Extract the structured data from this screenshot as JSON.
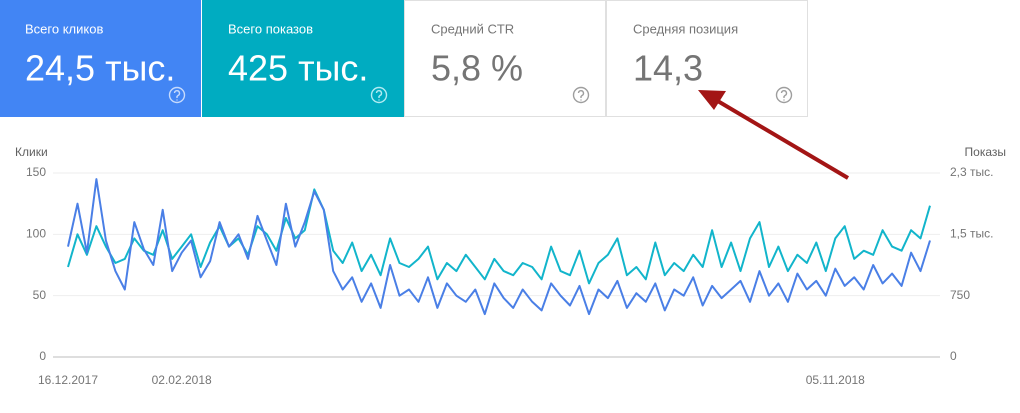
{
  "cards": [
    {
      "label": "Всего кликов",
      "value": "24,5 тыс."
    },
    {
      "label": "Всего показов",
      "value": "425 тыс."
    },
    {
      "label": "Средний CTR",
      "value": "5,8 %"
    },
    {
      "label": "Средняя позиция",
      "value": "14,3"
    }
  ],
  "chart_data": {
    "type": "line",
    "categories": [
      "16.12.2017",
      null,
      null,
      null,
      null,
      null,
      null,
      null,
      null,
      null,
      null,
      null,
      "02.02.2018",
      null,
      null,
      null,
      null,
      null,
      null,
      null,
      null,
      null,
      null,
      null,
      null,
      null,
      null,
      null,
      null,
      null,
      null,
      null,
      null,
      null,
      null,
      null,
      null,
      null,
      null,
      null,
      null,
      null,
      null,
      null,
      null,
      null,
      null,
      null,
      null,
      null,
      null,
      null,
      null,
      null,
      null,
      null,
      null,
      null,
      null,
      null,
      null,
      null,
      null,
      null,
      null,
      null,
      null,
      null,
      null,
      null,
      null,
      null,
      null,
      null,
      null,
      null,
      null,
      null,
      null,
      null,
      null,
      "05.11.2018",
      null,
      null,
      null,
      null,
      null,
      null,
      null,
      null,
      null,
      null
    ],
    "series": [
      {
        "name": "Клики",
        "color": "#4a7fe6",
        "values": [
          90,
          125,
          85,
          145,
          95,
          70,
          55,
          110,
          88,
          75,
          120,
          70,
          85,
          95,
          65,
          78,
          110,
          90,
          100,
          80,
          115,
          95,
          75,
          125,
          90,
          110,
          135,
          120,
          70,
          55,
          65,
          45,
          60,
          40,
          75,
          50,
          55,
          45,
          65,
          40,
          60,
          50,
          45,
          55,
          35,
          60,
          48,
          40,
          55,
          45,
          38,
          60,
          50,
          42,
          58,
          35,
          55,
          48,
          62,
          40,
          52,
          45,
          60,
          38,
          55,
          50,
          65,
          42,
          58,
          48,
          55,
          62,
          45,
          70,
          50,
          60,
          45,
          68,
          55,
          62,
          50,
          72,
          58,
          65,
          55,
          75,
          60,
          68,
          58,
          85,
          70,
          95
        ]
      },
      {
        "name": "Показы",
        "color": "#12b5cb",
        "axis": "y2",
        "values": [
          1100,
          1500,
          1250,
          1600,
          1350,
          1150,
          1200,
          1450,
          1300,
          1250,
          1550,
          1200,
          1350,
          1500,
          1100,
          1400,
          1600,
          1350,
          1450,
          1250,
          1600,
          1500,
          1300,
          1700,
          1450,
          1550,
          2050,
          1800,
          1300,
          1150,
          1400,
          1050,
          1250,
          1000,
          1450,
          1150,
          1100,
          1200,
          1350,
          950,
          1150,
          1050,
          1250,
          1100,
          950,
          1200,
          1050,
          1000,
          1150,
          1100,
          950,
          1350,
          1050,
          1000,
          1300,
          900,
          1150,
          1250,
          1450,
          1000,
          1100,
          950,
          1400,
          1000,
          1150,
          1050,
          1250,
          1100,
          1550,
          1100,
          1400,
          1050,
          1450,
          1650,
          1100,
          1350,
          1050,
          1250,
          1150,
          1400,
          1050,
          1450,
          1600,
          1200,
          1300,
          1250,
          1550,
          1350,
          1300,
          1550,
          1450,
          1850
        ]
      }
    ],
    "ylim": [
      0,
      150
    ],
    "yticks": [
      0,
      50,
      100,
      150
    ],
    "y2lim": [
      0,
      2250
    ],
    "y2ticks": [
      0,
      750,
      {
        "value": 1500,
        "label": "1,5 тыс."
      },
      {
        "value": 2250,
        "label": "2,3 тыс."
      }
    ],
    "grid": true
  }
}
